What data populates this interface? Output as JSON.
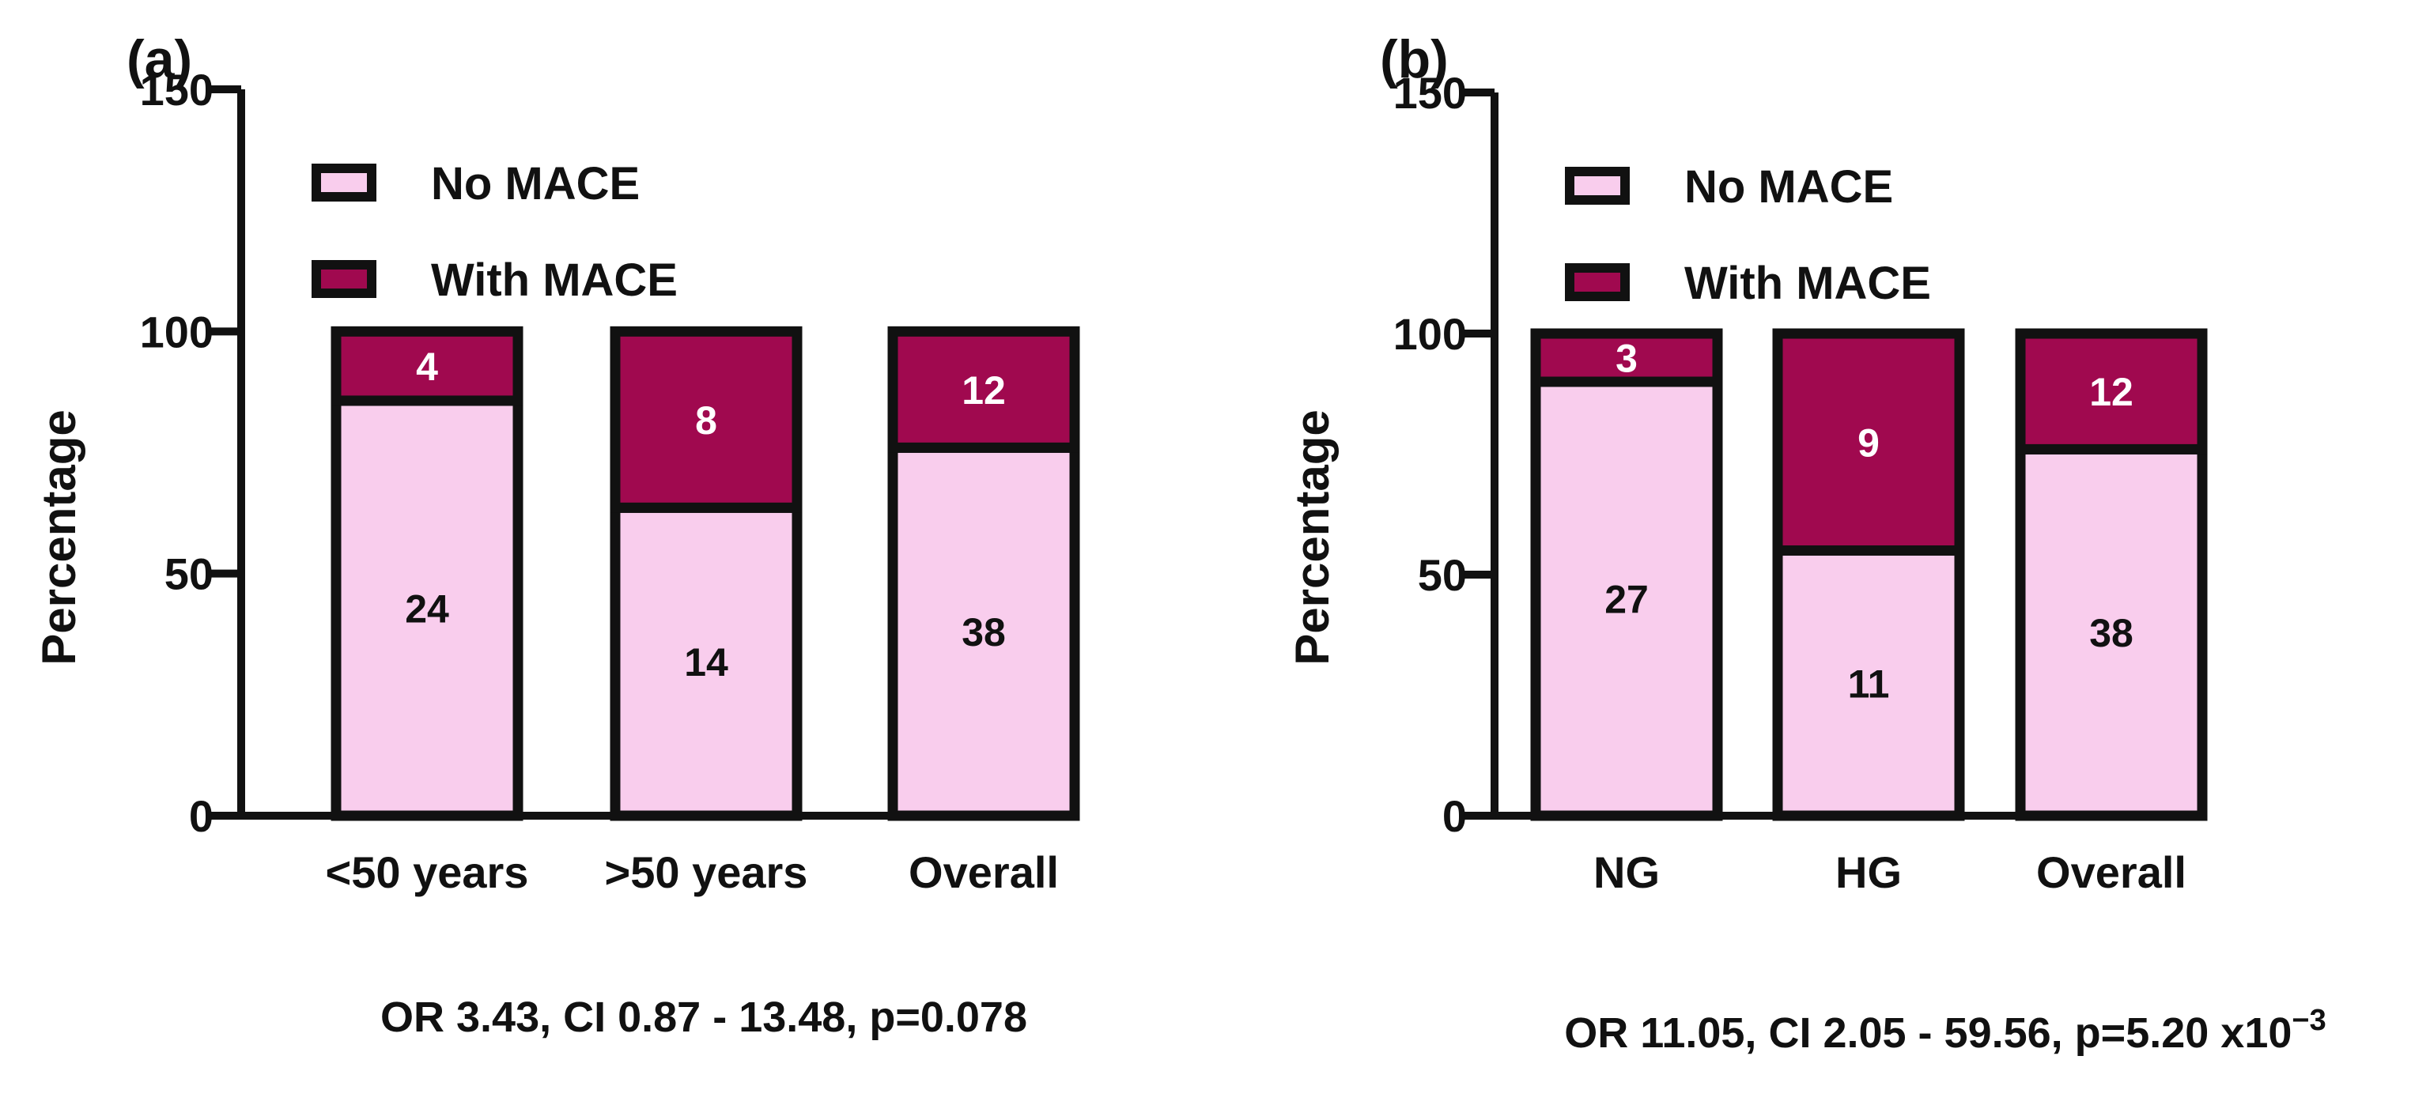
{
  "colors": {
    "no_mace": "#F9CDED",
    "with_mace": "#A0094F",
    "outline": "#111111",
    "background": "#FFFFFF"
  },
  "chart_data": [
    {
      "type": "bar",
      "stacked": true,
      "panel": "(a)",
      "ylabel": "Percentage",
      "ylim": [
        0,
        150
      ],
      "yticks": [
        0,
        50,
        100,
        150
      ],
      "categories": [
        "<50 years",
        ">50 years",
        "Overall"
      ],
      "series": [
        {
          "name": "No MACE",
          "values": [
            85.7,
            63.6,
            76.0
          ],
          "labels": [
            "24",
            "14",
            "38"
          ]
        },
        {
          "name": "With MACE",
          "values": [
            14.3,
            36.4,
            24.0
          ],
          "labels": [
            "4",
            "8",
            "12"
          ]
        }
      ],
      "legend": "top-left",
      "footer": {
        "text": "OR 3.43, CI 0.87 - 13.48, p=0.078",
        "sup": ""
      }
    },
    {
      "type": "bar",
      "stacked": true,
      "panel": "(b)",
      "ylabel": "Percentage",
      "ylim": [
        0,
        150
      ],
      "yticks": [
        0,
        50,
        100,
        150
      ],
      "categories": [
        "NG",
        "HG",
        "Overall"
      ],
      "series": [
        {
          "name": "No MACE",
          "values": [
            90.0,
            55.0,
            76.0
          ],
          "labels": [
            "27",
            "11",
            "38"
          ]
        },
        {
          "name": "With MACE",
          "values": [
            10.0,
            45.0,
            24.0
          ],
          "labels": [
            "3",
            "9",
            "12"
          ]
        }
      ],
      "legend": "top-left",
      "footer": {
        "text": "OR 11.05, CI 2.05 - 59.56, p=5.20 x10",
        "sup": "−3"
      }
    }
  ]
}
